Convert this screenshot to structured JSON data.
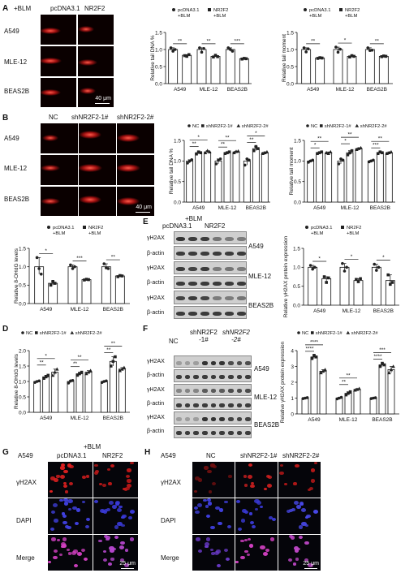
{
  "panels": {
    "A": {
      "letter": "A",
      "treatment": "+BLM",
      "cols": [
        "pcDNA3.1",
        "NR2F2"
      ],
      "rows": [
        "A549",
        "MLE-12",
        "BEAS2B"
      ],
      "scale": "40 μm"
    },
    "B": {
      "letter": "B",
      "cols": [
        "NC",
        "shNR2F2-1#",
        "shNR2F2-2#"
      ],
      "rows": [
        "A549",
        "MLE-12",
        "BEAS2B"
      ],
      "scale": "40 μm"
    },
    "E": {
      "letter": "E",
      "treatment": "+BLM",
      "cols": [
        "pcDNA3.1",
        "NR2F2"
      ],
      "rows": [
        "γH2AX",
        "β-actin",
        "γH2AX",
        "β-actin",
        "γH2AX",
        "β-actin"
      ],
      "cells": [
        "A549",
        "MLE-12",
        "BEAS2B"
      ]
    },
    "F": {
      "letter": "F",
      "cols": [
        "NC",
        "shNR2F2\n-1#",
        "shNR2F2\n-2#"
      ],
      "col1": "NC",
      "col2a": "shNR2F2",
      "col2b": "-1#",
      "col3a": "shNR2F2",
      "col3b": "-2#",
      "rows": [
        "γH2AX",
        "β-actin",
        "γH2AX",
        "β-actin",
        "γH2AX",
        "β-actin"
      ],
      "cells": [
        "A549",
        "MLE-12",
        "BEAS2B"
      ]
    },
    "G": {
      "letter": "G",
      "cell": "A549",
      "treatment": "+BLM",
      "cols": [
        "pcDNA3.1",
        "NR2F2"
      ],
      "rows": [
        "γH2AX",
        "DAPI",
        "Merge"
      ],
      "scale": "25 μm"
    },
    "H": {
      "letter": "H",
      "cell": "A549",
      "cols": [
        "NC",
        "shNR2F2-1#",
        "shNR2F2-2#"
      ],
      "rows": [
        "γH2AX",
        "DAPI",
        "Merge"
      ],
      "scale": "25 μm"
    }
  },
  "chart_data": [
    {
      "id": "A1",
      "type": "bar",
      "ylabel": "Relative tail DNA %",
      "categories": [
        "A549",
        "MLE-12",
        "BEAS2B"
      ],
      "ylim": [
        0,
        1.5
      ],
      "yticks": [
        0.0,
        0.5,
        1.0,
        1.5
      ],
      "series": [
        {
          "name": "pcDNA3.1\n+BLM",
          "values": [
            1.0,
            1.0,
            1.0
          ],
          "points": [
            [
              1.05,
              0.95,
              1.0
            ],
            [
              1.05,
              0.92,
              1.03
            ],
            [
              1.05,
              1.0,
              0.95
            ]
          ]
        },
        {
          "name": "NR2F2\n+BLM",
          "values": [
            0.83,
            0.8,
            0.73
          ],
          "points": [
            [
              0.82,
              0.8,
              0.85
            ],
            [
              0.78,
              0.83,
              0.79
            ],
            [
              0.72,
              0.74,
              0.73
            ]
          ]
        }
      ],
      "sig": [
        "**",
        "**",
        "***"
      ],
      "legend": [
        "pcDNA3.1 +BLM",
        "NR2F2 +BLM"
      ]
    },
    {
      "id": "A2",
      "type": "bar",
      "ylabel": "Relative tail moment",
      "categories": [
        "A549",
        "MLE-12",
        "BEAS2B"
      ],
      "ylim": [
        0,
        1.5
      ],
      "yticks": [
        0.0,
        0.5,
        1.0,
        1.5
      ],
      "series": [
        {
          "name": "pcDNA3.1\n+BLM",
          "values": [
            1.0,
            1.0,
            1.0
          ],
          "points": [
            [
              1.05,
              0.93,
              1.02
            ],
            [
              1.07,
              0.92,
              1.01
            ],
            [
              1.05,
              0.97,
              0.98
            ]
          ]
        },
        {
          "name": "NR2F2\n+BLM",
          "values": [
            0.75,
            0.8,
            0.8
          ],
          "points": [
            [
              0.74,
              0.76,
              0.75
            ],
            [
              0.78,
              0.82,
              0.8
            ],
            [
              0.79,
              0.81,
              0.8
            ]
          ]
        }
      ],
      "sig": [
        "**",
        "*",
        "**"
      ],
      "legend": [
        "pcDNA3.1 +BLM",
        "NR2F2 +BLM"
      ]
    },
    {
      "id": "B1",
      "type": "bar",
      "ylabel": "Relative tail DNA %",
      "categories": [
        "A549",
        "MLE-12",
        "BEAS2B"
      ],
      "ylim": [
        0,
        1.5
      ],
      "yticks": [
        0.0,
        0.5,
        1.0,
        1.5
      ],
      "series": [
        {
          "name": "NC",
          "values": [
            1.0,
            1.0,
            1.0
          ],
          "points": [
            [
              0.95,
              1.0,
              1.03
            ],
            [
              0.93,
              1.02,
              1.05
            ],
            [
              0.9,
              1.05,
              1.02
            ]
          ]
        },
        {
          "name": "shNR2F2-1#",
          "values": [
            1.2,
            1.2,
            1.3
          ],
          "points": [
            [
              1.17,
              1.22,
              1.2
            ],
            [
              1.18,
              1.2,
              1.22
            ],
            [
              1.25,
              1.35,
              1.3
            ]
          ]
        },
        {
          "name": "shNR2F2-2#",
          "values": [
            1.22,
            1.22,
            1.2
          ],
          "points": [
            [
              1.2,
              1.25,
              1.22
            ],
            [
              1.2,
              1.23,
              1.24
            ],
            [
              1.18,
              1.2,
              1.22
            ]
          ]
        }
      ],
      "sig2": [
        "**",
        "**",
        "**"
      ],
      "sig3": [
        "*",
        "**",
        "*"
      ],
      "legend": [
        "NC",
        "shNR2F2-1#",
        "shNR2F2-2#"
      ]
    },
    {
      "id": "B2",
      "type": "bar",
      "ylabel": "Relative tail moment",
      "categories": [
        "A549",
        "MLE-12",
        "BEAS2B"
      ],
      "ylim": [
        0,
        1.5
      ],
      "yticks": [
        0.0,
        0.5,
        1.0,
        1.5
      ],
      "series": [
        {
          "name": "NC",
          "values": [
            1.0,
            1.0,
            1.0
          ],
          "points": [
            [
              0.97,
              1.0,
              1.02
            ],
            [
              0.93,
              1.05,
              1.02
            ],
            [
              0.98,
              1.0,
              1.02
            ]
          ]
        },
        {
          "name": "shNR2F2-1#",
          "values": [
            1.2,
            1.2,
            1.2
          ],
          "points": [
            [
              1.18,
              1.2,
              1.22
            ],
            [
              1.15,
              1.2,
              1.25
            ],
            [
              1.18,
              1.22,
              1.2
            ]
          ]
        },
        {
          "name": "shNR2F2-2#",
          "values": [
            1.2,
            1.3,
            1.2
          ],
          "points": [
            [
              1.2,
              1.18,
              1.22
            ],
            [
              1.28,
              1.3,
              1.32
            ],
            [
              1.18,
              1.2,
              1.22
            ]
          ]
        }
      ],
      "sig2": [
        "*",
        "*",
        "***"
      ],
      "sig3": [
        "**",
        "**",
        "**"
      ],
      "legend": [
        "NC",
        "shNR2F2-1#",
        "shNR2F2-2#"
      ]
    },
    {
      "id": "C",
      "type": "bar",
      "ylabel": "Relative 8-OHdG levels",
      "categories": [
        "A549",
        "MLE-12",
        "BEAS2B"
      ],
      "ylim": [
        0,
        1.5
      ],
      "yticks": [
        0.0,
        0.5,
        1.0,
        1.5
      ],
      "series": [
        {
          "name": "pcDNA3.1\n+BLM",
          "values": [
            1.0,
            1.0,
            1.0
          ],
          "points": [
            [
              1.25,
              0.95,
              0.8
            ],
            [
              1.05,
              0.95,
              1.0
            ],
            [
              1.08,
              0.97,
              0.95
            ]
          ]
        },
        {
          "name": "NR2F2\n+BLM",
          "values": [
            0.55,
            0.65,
            0.75
          ],
          "points": [
            [
              0.5,
              0.6,
              0.55
            ],
            [
              0.64,
              0.66,
              0.65
            ],
            [
              0.73,
              0.76,
              0.75
            ]
          ]
        }
      ],
      "sig": [
        "*",
        "***",
        "**"
      ],
      "legend": [
        "pcDNA3.1 +BLM",
        "NR2F2 +BLM"
      ]
    },
    {
      "id": "D",
      "type": "bar",
      "ylabel": "Relative 8-OHdG levels",
      "categories": [
        "A549",
        "MLE-12",
        "BEAS2B"
      ],
      "ylim": [
        0,
        2.0
      ],
      "yticks": [
        0.0,
        0.5,
        1.0,
        1.5,
        2.0
      ],
      "series": [
        {
          "name": "NC",
          "values": [
            1.0,
            1.0,
            1.0
          ],
          "points": [
            [
              0.97,
              1.0,
              1.02
            ],
            [
              0.95,
              1.02,
              1.03
            ],
            [
              0.97,
              1.0,
              1.02
            ]
          ]
        },
        {
          "name": "shNR2F2-1#",
          "values": [
            1.15,
            1.25,
            1.65
          ],
          "points": [
            [
              1.1,
              1.15,
              1.2
            ],
            [
              1.2,
              1.25,
              1.3
            ],
            [
              1.5,
              1.65,
              1.8
            ]
          ]
        },
        {
          "name": "shNR2F2-2#",
          "values": [
            1.3,
            1.3,
            1.4
          ],
          "points": [
            [
              1.2,
              1.3,
              1.4
            ],
            [
              1.25,
              1.3,
              1.35
            ],
            [
              1.35,
              1.4,
              1.45
            ]
          ]
        }
      ],
      "sig2": [
        "**",
        "**",
        "**"
      ],
      "sig3": [
        "*",
        "**",
        "**"
      ],
      "legend": [
        "NC",
        "shNR2F2-1#",
        "shNR2F2-2#"
      ]
    },
    {
      "id": "E",
      "type": "bar",
      "ylabel": "Relative γH2AX protein expression",
      "categories": [
        "A549",
        "MLE-12",
        "BEAS2B"
      ],
      "ylim": [
        0,
        1.5
      ],
      "yticks": [
        0.0,
        0.5,
        1.0,
        1.5
      ],
      "series": [
        {
          "name": "pcDNA3.1\n+BLM",
          "values": [
            1.0,
            1.0,
            1.0
          ],
          "points": [
            [
              1.05,
              0.95,
              1.0
            ],
            [
              1.1,
              0.9,
              1.0
            ],
            [
              1.08,
              0.92,
              1.0
            ]
          ]
        },
        {
          "name": "NR2F2\n+BLM",
          "values": [
            0.7,
            0.65,
            0.65
          ],
          "points": [
            [
              0.75,
              0.6,
              0.72
            ],
            [
              0.68,
              0.62,
              0.7
            ],
            [
              0.8,
              0.55,
              0.6
            ]
          ]
        }
      ],
      "sig": [
        "*",
        "*",
        "*"
      ],
      "legend": [
        "pcDNA3.1 +BLM",
        "NR2F2 +BLM"
      ]
    },
    {
      "id": "F",
      "type": "bar",
      "ylabel": "Relative γH2AX protein expression",
      "categories": [
        "A549",
        "MLE-12",
        "BEAS2B"
      ],
      "ylim": [
        0,
        4
      ],
      "yticks": [
        0,
        1,
        2,
        3,
        4
      ],
      "series": [
        {
          "name": "NC",
          "values": [
            1.0,
            1.0,
            1.0
          ],
          "points": [
            [
              0.97,
              1.0,
              1.03
            ],
            [
              0.95,
              1.0,
              1.05
            ],
            [
              0.97,
              1.0,
              1.02
            ]
          ]
        },
        {
          "name": "shNR2F2-1#",
          "values": [
            3.6,
            1.3,
            3.1
          ],
          "points": [
            [
              3.5,
              3.7,
              3.6
            ],
            [
              1.2,
              1.3,
              1.4
            ],
            [
              3.0,
              3.2,
              3.1
            ]
          ]
        },
        {
          "name": "shNR2F2-2#",
          "values": [
            2.7,
            1.55,
            2.8
          ],
          "points": [
            [
              2.6,
              2.7,
              2.8
            ],
            [
              1.5,
              1.55,
              1.6
            ],
            [
              2.6,
              2.8,
              3.0
            ]
          ]
        }
      ],
      "sig2": [
        "****",
        "**",
        "****"
      ],
      "sig3": [
        "****",
        "**",
        "***"
      ],
      "legend": [
        "NC",
        "shNR2F2-1#",
        "shNR2F2-2#"
      ]
    }
  ]
}
